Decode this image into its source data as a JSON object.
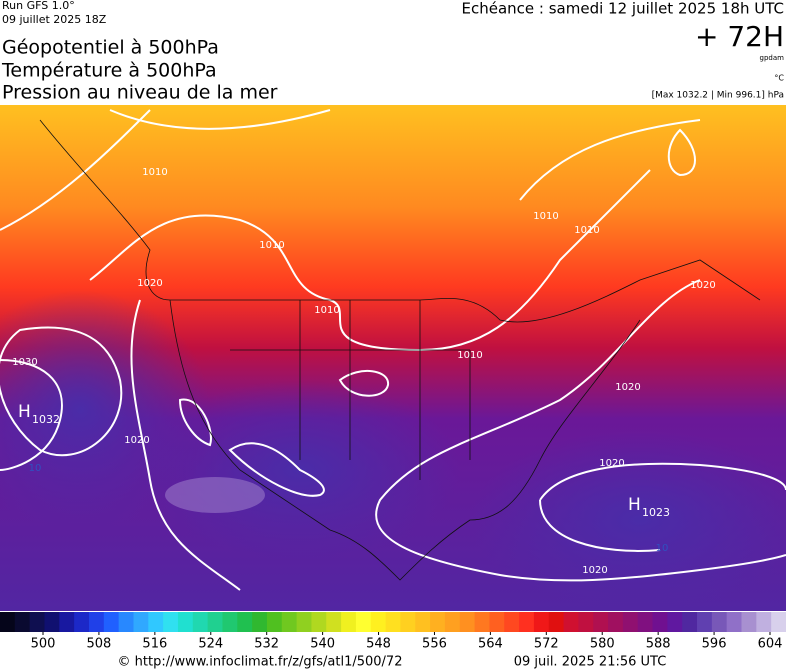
{
  "header": {
    "run": "Run GFS 1.0°",
    "run_date": "09 juillet 2025 18Z",
    "title_lines": [
      "Géopotentiel à 500hPa",
      "Température à 500hPa",
      "Pression au niveau de la mer"
    ],
    "valid": "Echéance : samedi 12 juillet 2025 18h UTC",
    "lead": "+ 72H",
    "unit_geo": "gpdam",
    "unit_temp": "°C",
    "pressure_range": "[Max 1032.2 | Min 996.1] hPa"
  },
  "map": {
    "isobar_labels": [
      "1010",
      "1010",
      "1010",
      "1010",
      "1010",
      "1010",
      "1020",
      "1020",
      "1020",
      "1020",
      "1020",
      "1020",
      "1030"
    ],
    "highs": [
      {
        "letter": "H",
        "value": "1032"
      },
      {
        "letter": "H",
        "value": "1023"
      }
    ],
    "temp_labels": [
      "10",
      "10"
    ]
  },
  "colorbar": {
    "colors": [
      "#05051a",
      "#0a0a30",
      "#0f0f50",
      "#101070",
      "#1818a0",
      "#1c28c8",
      "#2040e8",
      "#2060ff",
      "#2888ff",
      "#30a8ff",
      "#30c8ff",
      "#30e0f0",
      "#20e0d0",
      "#20d8b0",
      "#20d090",
      "#20c870",
      "#20c050",
      "#30b830",
      "#50c020",
      "#70c820",
      "#90d020",
      "#b0d820",
      "#d0e020",
      "#f0f020",
      "#ffff30",
      "#fff020",
      "#ffe020",
      "#ffd020",
      "#ffc020",
      "#ffb020",
      "#ffa020",
      "#ff9020",
      "#ff7820",
      "#ff6020",
      "#ff4820",
      "#ff3020",
      "#f01818",
      "#e01010",
      "#d01030",
      "#c01040",
      "#b01050",
      "#a01060",
      "#901070",
      "#801080",
      "#701090",
      "#6018a0",
      "#5028a0",
      "#6040b0",
      "#7858b8",
      "#9070c8",
      "#a890d0",
      "#c0b0e0",
      "#d8d0ec"
    ],
    "ticks": [
      500,
      508,
      516,
      524,
      532,
      540,
      548,
      556,
      564,
      572,
      580,
      588,
      596,
      604
    ]
  },
  "footer": {
    "url": "© http://www.infoclimat.fr/z/gfs/atl1/500/72",
    "generated": "09 juil. 2025 21:56 UTC"
  }
}
